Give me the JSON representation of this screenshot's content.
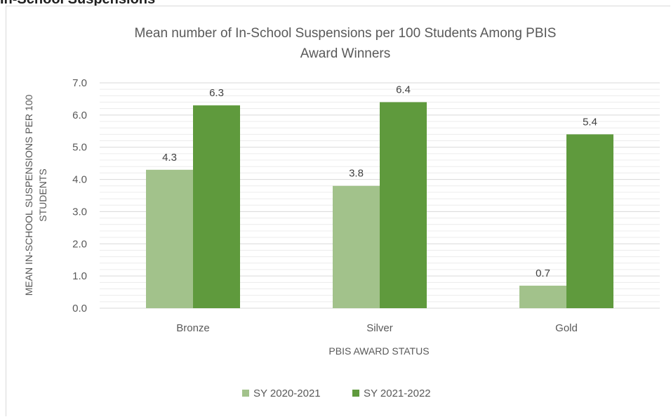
{
  "page": {
    "section_heading": "In-School Suspensions"
  },
  "chart_data": {
    "type": "bar",
    "title_lines": [
      "Mean number of In-School Suspensions per 100 Students Among PBIS",
      "Award Winners"
    ],
    "xlabel": "PBIS AWARD STATUS",
    "ylabel_lines": [
      "MEAN IN-SCHOOL SUSPENSIONS PER 100",
      "STUDENTS"
    ],
    "categories": [
      "Bronze",
      "Silver",
      "Gold"
    ],
    "series": [
      {
        "name": "SY 2020-2021",
        "values": [
          4.3,
          3.8,
          0.7
        ],
        "labels": [
          "4.3",
          "3.8",
          "0.7"
        ],
        "color": "#a2c28b"
      },
      {
        "name": "SY 2021-2022",
        "values": [
          6.3,
          6.4,
          5.4
        ],
        "labels": [
          "6.3",
          "6.4",
          "5.4"
        ],
        "color": "#5f9a3d"
      }
    ],
    "ylim": [
      0,
      7
    ],
    "y_ticks": [
      "0.0",
      "1.0",
      "2.0",
      "3.0",
      "4.0",
      "5.0",
      "6.0",
      "7.0"
    ],
    "grid": true,
    "legend_position": "bottom"
  }
}
